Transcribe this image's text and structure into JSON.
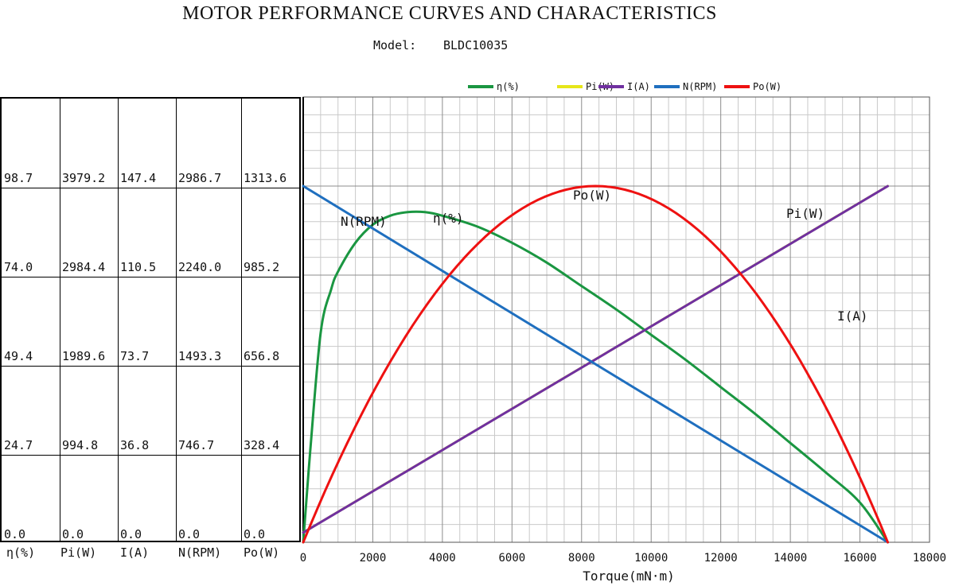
{
  "header": {
    "title": "MOTOR PERFORMANCE CURVES AND CHARACTERISTICS",
    "model_label": "Model:",
    "model_value": "BLDC10035"
  },
  "scale_table": {
    "columns": [
      "η(%)",
      "Pi(W)",
      "I(A)",
      "N(RPM)",
      "Po(W)"
    ],
    "rows": [
      [
        "98.7",
        "3979.2",
        "147.4",
        "2986.7",
        "1313.6"
      ],
      [
        "74.0",
        "2984.4",
        "110.5",
        "2240.0",
        "985.2"
      ],
      [
        "49.4",
        "1989.6",
        "73.7",
        "1493.3",
        "656.8"
      ],
      [
        "24.7",
        "994.8",
        "36.8",
        "746.7",
        "328.4"
      ],
      [
        "0.0",
        "0.0",
        "0.0",
        "0.0",
        "0.0"
      ]
    ]
  },
  "chart_data": {
    "type": "line",
    "title": "MOTOR PERFORMANCE CURVES AND CHARACTERISTICS",
    "xlabel": "Torque(mN·m)",
    "ylabel": "",
    "xlim": [
      0,
      18000
    ],
    "xticks": [
      "0",
      "2000",
      "4000",
      "6000",
      "8000",
      "10000",
      "12000",
      "14000",
      "16000",
      "18000"
    ],
    "grid": true,
    "legend_position": "top",
    "ylim_note": "each series scaled to its own column in the scale table; row values map to 0, 1/4, 1/2, 3/4, 1 of top row",
    "series": [
      {
        "name": "η(%)",
        "color": "#1a9641",
        "label": "η(%)",
        "y_max": 123.4,
        "x": [
          0,
          200,
          500,
          800,
          1000,
          1500,
          2000,
          2500,
          3000,
          3500,
          4000,
          5000,
          6000,
          7000,
          8000,
          9000,
          10000,
          11000,
          12000,
          13000,
          14000,
          15000,
          16000,
          16800
        ],
        "values": [
          0,
          25,
          58,
          70,
          75,
          83,
          88,
          90.5,
          91.5,
          91.5,
          90.5,
          87.5,
          83,
          77.5,
          71,
          64.5,
          57.5,
          50.5,
          43,
          35.5,
          27.5,
          19.5,
          11,
          0
        ]
      },
      {
        "name": "Pi(W)",
        "color": "#e6e619",
        "label": "Pi(W)",
        "y_max": 4974,
        "x": [
          0,
          16800
        ],
        "values": [
          109,
          3979
        ]
      },
      {
        "name": "I(A)",
        "color": "#7030a0",
        "label": "I(A)",
        "y_max": 184.3,
        "x": [
          0,
          16800
        ],
        "values": [
          4,
          147.4
        ]
      },
      {
        "name": "N(RPM)",
        "color": "#1f6fbf",
        "label": "N(RPM)",
        "y_max": 3733.4,
        "x": [
          0,
          16800
        ],
        "values": [
          2986.7,
          0
        ]
      },
      {
        "name": "Po(W)",
        "color": "#ee1111",
        "label": "Po(W)",
        "y_max": 1642,
        "x": [
          0,
          8400,
          16800
        ],
        "values": [
          0,
          1313.6,
          0
        ]
      }
    ]
  }
}
